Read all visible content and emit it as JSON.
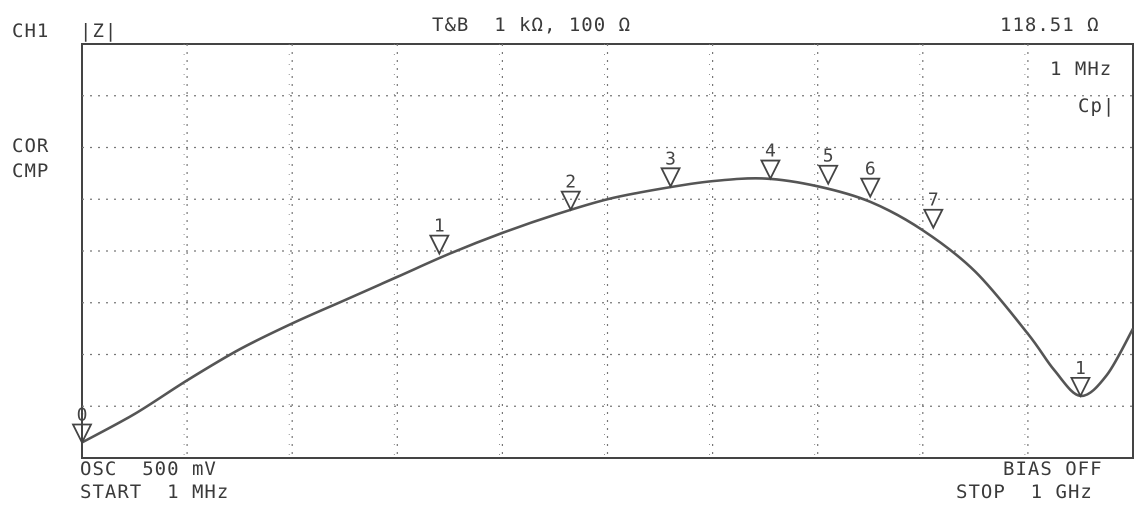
{
  "header": {
    "channel": "CH1",
    "parameter": "|Z|",
    "scale": "T&B  1 kΩ, 100 Ω",
    "marker_value": "118.51 Ω"
  },
  "side_labels": {
    "cor": "COR",
    "cmp": "CMP"
  },
  "right_labels": {
    "marker_freq": "1 MHz",
    "mode": "Cp|"
  },
  "footer": {
    "osc": "OSC  500 mV",
    "start": "START  1 MHz",
    "bias": "BIAS OFF",
    "stop": "STOP  1 GHz"
  },
  "chart_data": {
    "type": "line",
    "title": "",
    "xlabel": "",
    "ylabel": "",
    "x_range_labels": [
      "START 1 MHz",
      "STOP 1 GHz"
    ],
    "grid": true,
    "x_divisions": 10,
    "y_divisions": 8,
    "series": [
      {
        "values_note_free": true,
        "x_div": [
          0,
          0.5,
          1,
          1.5,
          2,
          2.5,
          3,
          3.5,
          4,
          4.5,
          5,
          5.5,
          6,
          6.5,
          7,
          7.5,
          8,
          8.5,
          9,
          9.25,
          9.5,
          9.75,
          10
        ],
        "y_div": [
          0.3,
          0.85,
          1.5,
          2.1,
          2.6,
          3.05,
          3.5,
          3.95,
          4.35,
          4.7,
          5.0,
          5.2,
          5.35,
          5.4,
          5.25,
          4.95,
          4.4,
          3.6,
          2.4,
          1.7,
          1.2,
          1.6,
          2.5
        ]
      }
    ],
    "markers": [
      {
        "label": "0",
        "x_div": 0.0,
        "y_div": 0.3
      },
      {
        "label": "1",
        "x_div": 3.4,
        "y_div": 3.95
      },
      {
        "label": "2",
        "x_div": 4.65,
        "y_div": 4.8
      },
      {
        "label": "3",
        "x_div": 5.6,
        "y_div": 5.25
      },
      {
        "label": "4",
        "x_div": 6.55,
        "y_div": 5.4
      },
      {
        "label": "5",
        "x_div": 7.1,
        "y_div": 5.3
      },
      {
        "label": "6",
        "x_div": 7.5,
        "y_div": 5.05
      },
      {
        "label": "7",
        "x_div": 8.1,
        "y_div": 4.45
      },
      {
        "label": "1",
        "x_div": 9.5,
        "y_div": 1.2
      }
    ],
    "colors": {
      "trace": "#555555",
      "grid": "#777777",
      "frame": "#444444"
    }
  }
}
